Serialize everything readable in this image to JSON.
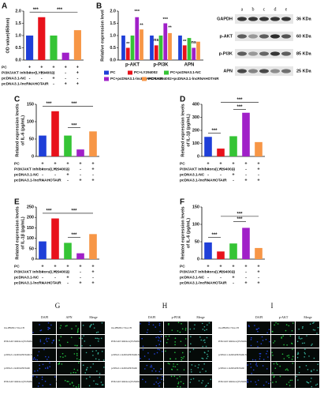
{
  "chart_data": [
    {
      "panel": "A",
      "type": "bar",
      "y_label": [
        "OD value(450nm)"
      ],
      "values": [
        1.0,
        1.75,
        1.0,
        0.3,
        1.22
      ],
      "colors": [
        "#1f3fd8",
        "#e8121b",
        "#35c435",
        "#a020c8",
        "#f79646"
      ],
      "ylim": [
        0,
        2
      ],
      "yticks": [
        {
          "value": 0,
          "label": "0.0"
        },
        {
          "value": 0.5,
          "label": "0.5"
        },
        {
          "value": 1,
          "label": "1.0"
        },
        {
          "value": 1.5,
          "label": "1.5"
        },
        {
          "value": 2,
          "label": "2.0"
        }
      ],
      "annotations": [
        "***",
        "***"
      ],
      "conditions": [
        {
          "label": "PC",
          "signs": [
            "+",
            "+",
            "+",
            "+",
            "+"
          ]
        },
        {
          "label": "PI3K/AKT inhibitor(LY294002)",
          "signs": [
            "-",
            "+",
            "-",
            "-",
            "+"
          ]
        },
        {
          "label": "pcDNA3.1-NC",
          "signs": [
            "-",
            "-",
            "+",
            "-",
            "-"
          ]
        },
        {
          "label": "pcDNA3.1-lncRNAHOTAIR",
          "signs": [
            "-",
            "-",
            "-",
            "+",
            "+"
          ]
        }
      ]
    },
    {
      "panel": "B",
      "type": "grouped_bar",
      "y_label": [
        "Relative expression level"
      ],
      "categories": [
        "p-AKT",
        "p-PI3K",
        "APN"
      ],
      "series": [
        {
          "name": "PC",
          "color": "#1f3fd8",
          "values": [
            1.0,
            1.0,
            1.0
          ]
        },
        {
          "name": "PC+LY294002",
          "color": "#e8121b",
          "values": [
            0.5,
            0.6,
            0.6
          ]
        },
        {
          "name": "PC+pcDNA3.1-NC",
          "color": "#35c435",
          "values": [
            1.0,
            1.0,
            0.9
          ]
        },
        {
          "name": "PC+pcDNA3.1-lncRNAHOTAIR",
          "color": "#a020c8",
          "values": [
            1.75,
            1.5,
            0.5
          ]
        },
        {
          "name": "PC+LY294002+pcDNA3.1-lncRNAHOTAIR",
          "color": "#f79646",
          "values": [
            1.25,
            1.1,
            0.75
          ]
        }
      ],
      "ylim": [
        0,
        2
      ],
      "yticks": [
        {
          "value": 0,
          "label": "0.0"
        },
        {
          "value": 0.5,
          "label": "0.5"
        },
        {
          "value": 1,
          "label": "1.0"
        },
        {
          "value": 1.5,
          "label": "1.5"
        },
        {
          "value": 2,
          "label": "2.0"
        }
      ],
      "annotations": [
        "**",
        "***",
        "**",
        "ns",
        "***",
        "**",
        "**",
        "ns"
      ]
    },
    {
      "panel": "C",
      "type": "bar",
      "y_label": [
        "Related expression levels",
        "of IL-6 (pg/mL)"
      ],
      "values": [
        60,
        130,
        60,
        20,
        72
      ],
      "colors": [
        "#1f3fd8",
        "#e8121b",
        "#35c435",
        "#a020c8",
        "#f79646"
      ],
      "ylim": [
        0,
        150
      ],
      "yticks": [
        0,
        50,
        100,
        150
      ],
      "annotations": [
        "***",
        "***",
        "***"
      ],
      "conditions": [
        {
          "label": "PC",
          "signs": [
            "+",
            "+",
            "+",
            "+",
            "+"
          ]
        },
        {
          "label": "PI3K/AKT inhibitors(LY294002)",
          "signs": [
            "-",
            "+",
            "-",
            "-",
            "+"
          ]
        },
        {
          "label": "pcDNA3.1-NC",
          "signs": [
            "-",
            "-",
            "+",
            "-",
            "-"
          ]
        },
        {
          "label": "pcDNA3.1-lncRNAHOTAIR",
          "signs": [
            "-",
            "-",
            "-",
            "+",
            "+"
          ]
        }
      ]
    },
    {
      "panel": "D",
      "type": "bar",
      "y_label": [
        "Related expression levels",
        "of IL-1β (pg/mL)"
      ],
      "values": [
        150,
        60,
        155,
        335,
        110
      ],
      "colors": [
        "#1f3fd8",
        "#e8121b",
        "#35c435",
        "#a020c8",
        "#f79646"
      ],
      "ylim": [
        0,
        400
      ],
      "yticks": [
        0,
        100,
        200,
        300,
        400
      ],
      "annotations": [
        "***",
        "***",
        "***"
      ],
      "conditions": [
        {
          "label": "PC",
          "signs": [
            "+",
            "+",
            "+",
            "+",
            "+"
          ]
        },
        {
          "label": "PI3K/AKT inhibitors(LY294002)",
          "signs": [
            "-",
            "+",
            "-",
            "-",
            "+"
          ]
        },
        {
          "label": "pcDNA3.1-NC",
          "signs": [
            "-",
            "-",
            "+",
            "-",
            "-"
          ]
        },
        {
          "label": "pcDNA3.1-lncRNAHOTAIR",
          "signs": [
            "-",
            "-",
            "-",
            "+",
            "+"
          ]
        }
      ]
    },
    {
      "panel": "E",
      "type": "bar",
      "y_label": [
        "Related expression levels",
        "of IL-1β (pg/mL)"
      ],
      "values": [
        85,
        195,
        78,
        28,
        120
      ],
      "colors": [
        "#1f3fd8",
        "#e8121b",
        "#35c435",
        "#a020c8",
        "#f79646"
      ],
      "ylim": [
        0,
        250
      ],
      "yticks": [
        0,
        50,
        100,
        150,
        200,
        250
      ],
      "annotations": [
        "***",
        "***",
        "***"
      ],
      "conditions": [
        {
          "label": "PC",
          "signs": [
            "+",
            "+",
            "+",
            "+",
            "+"
          ]
        },
        {
          "label": "PI3K/AKT inhibitors(LY294002)",
          "signs": [
            "-",
            "+",
            "-",
            "-",
            "+"
          ]
        },
        {
          "label": "pcDNA3.1-NC",
          "signs": [
            "-",
            "-",
            "+",
            "-",
            "-"
          ]
        },
        {
          "label": "pcDNA3.1-lncRNAHOTAIR",
          "signs": [
            "-",
            "-",
            "-",
            "+",
            "+"
          ]
        }
      ]
    },
    {
      "panel": "F",
      "type": "bar",
      "y_label": [
        "Related expression levels",
        "of IL-6 (pg/mL)"
      ],
      "values": [
        48,
        22,
        45,
        90,
        32
      ],
      "colors": [
        "#1f3fd8",
        "#e8121b",
        "#35c435",
        "#a020c8",
        "#f79646"
      ],
      "ylim": [
        0,
        150
      ],
      "yticks": [
        0,
        50,
        100,
        150
      ],
      "annotations": [
        "***",
        "***",
        "***"
      ],
      "conditions": [
        {
          "label": "PC",
          "signs": [
            "+",
            "+",
            "+",
            "+",
            "+"
          ]
        },
        {
          "label": "PI3K/AKT inhibitors(LY294002)",
          "signs": [
            "-",
            "+",
            "-",
            "-",
            "+"
          ]
        },
        {
          "label": "pcDNA3.1-NC",
          "signs": [
            "-",
            "-",
            "+",
            "-",
            "-"
          ]
        },
        {
          "label": "pcDNA3.1-lncRNAHOTAIR",
          "signs": [
            "-",
            "-",
            "-",
            "+",
            "+"
          ]
        }
      ]
    }
  ],
  "blot": {
    "lanes": [
      "a",
      "b",
      "c",
      "d",
      "e"
    ],
    "rows": [
      {
        "name": "GAPDH",
        "size": "36 KDa"
      },
      {
        "name": "p-AKT",
        "size": "60 KDa"
      },
      {
        "name": "p-PI3K",
        "size": "85 KDa"
      },
      {
        "name": "APN",
        "size": "25 KDa"
      }
    ]
  },
  "micrographs": {
    "row_labels": [
      "OA-PBMSCs+OA-CH",
      "PI3K/AKT inhibitors(LY294002)",
      "pcDNA3.1-lncRNAHOTAIR-NC",
      "pcDNA3.1-lncRNAHOTAIR",
      "PI3K/AKT inhibitors(LY294002)+pcDNA3.1-lncRNAHOTAIR"
    ],
    "panels": [
      {
        "panel": "G",
        "columns": [
          "DAPI",
          "APN",
          "Merge"
        ]
      },
      {
        "panel": "H",
        "columns": [
          "DAPI",
          "p-PI3K",
          "Merge"
        ]
      },
      {
        "panel": "I",
        "columns": [
          "DAPI",
          "p-AKT",
          "Merge"
        ]
      }
    ]
  }
}
